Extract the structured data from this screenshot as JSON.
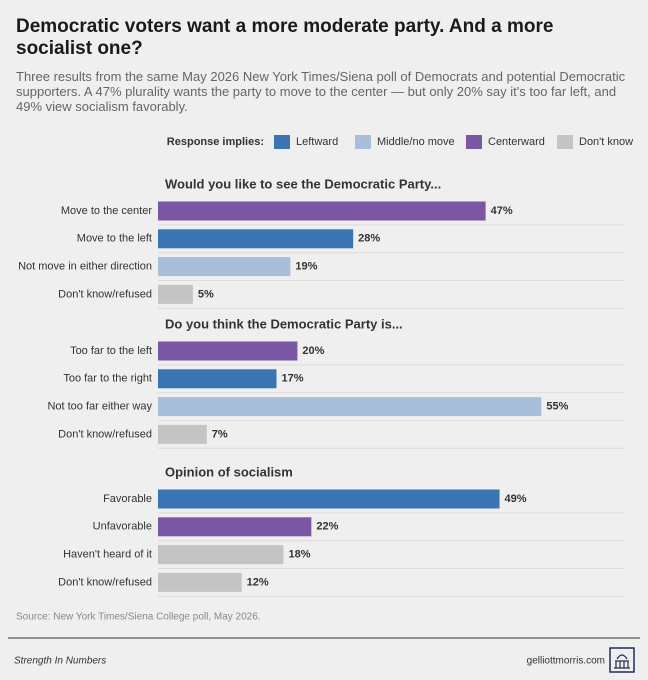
{
  "title": "Democratic voters want a more moderate party. And a more socialist one?",
  "subtitle": "Three results from the same May 2026 New York Times/Siena poll of Democrats and potential Democratic supporters. A 47% plurality wants the party to move to the center — but only 20% say it's too far left, and 49% view socialism favorably.",
  "legend_title": "Response implies:",
  "legend": [
    {
      "name": "Leftward",
      "color": "#3a74b4"
    },
    {
      "name": "Middle/no move",
      "color": "#a8bedb"
    },
    {
      "name": "Centerward",
      "color": "#7a56a5"
    },
    {
      "name": "Don't know",
      "color": "#c4c4c4"
    }
  ],
  "source": "Source: New York Times/Siena College poll, May 2026.",
  "footer_left": "Strength In Numbers",
  "footer_right": "gelliottmorris.com",
  "chart_data": [
    {
      "type": "bar",
      "title": "Would you like to see the Democratic Party...",
      "categories": [
        "Move to the center",
        "Move to the left",
        "Not move in either direction",
        "Don't know/refused"
      ],
      "values": [
        47,
        28,
        19,
        5
      ],
      "value_labels": [
        "47%",
        "28%",
        "19%",
        "5%"
      ],
      "colors": [
        "#7a56a5",
        "#3a74b4",
        "#a8bedb",
        "#c4c4c4"
      ],
      "xlim": [
        0,
        67
      ]
    },
    {
      "type": "bar",
      "title": "Do you think the Democratic Party is...",
      "categories": [
        "Too far to the left",
        "Too far to the right",
        "Not too far either way",
        "Don't know/refused"
      ],
      "values": [
        20,
        17,
        55,
        7
      ],
      "value_labels": [
        "20%",
        "17%",
        "55%",
        "7%"
      ],
      "colors": [
        "#7a56a5",
        "#3a74b4",
        "#a8bedb",
        "#c4c4c4"
      ],
      "xlim": [
        0,
        67
      ]
    },
    {
      "type": "bar",
      "title": "Opinion of socialism",
      "categories": [
        "Favorable",
        "Unfavorable",
        "Haven't heard of it",
        "Don't know/refused"
      ],
      "values": [
        49,
        22,
        18,
        12
      ],
      "value_labels": [
        "49%",
        "22%",
        "18%",
        "12%"
      ],
      "colors": [
        "#3a74b4",
        "#7a56a5",
        "#c4c4c4",
        "#c4c4c4"
      ],
      "xlim": [
        0,
        67
      ]
    }
  ]
}
